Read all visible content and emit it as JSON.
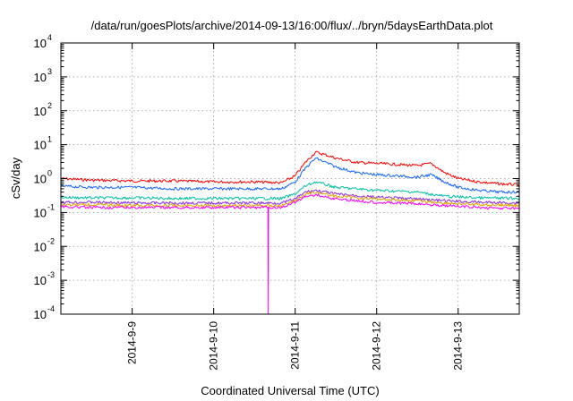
{
  "chart_data": {
    "type": "line",
    "title": "/data/run/goesPlots/archive/2014-09-13/16:00/flux/../bryn/5daysEarthData.plot",
    "xlabel": "Coordinated Universal Time (UTC)",
    "ylabel": "cSv/day",
    "yscale": "log",
    "ylim": [
      0.0001,
      10000
    ],
    "xlim": [
      "2014-09-08 03:00",
      "2014-09-13 18:00"
    ],
    "y_ticks": [
      {
        "base": "10",
        "exp": "-4",
        "value": 0.0001
      },
      {
        "base": "10",
        "exp": "-3",
        "value": 0.001
      },
      {
        "base": "10",
        "exp": "-2",
        "value": 0.01
      },
      {
        "base": "10",
        "exp": "-1",
        "value": 0.1
      },
      {
        "base": "10",
        "exp": "0",
        "value": 1
      },
      {
        "base": "10",
        "exp": "1",
        "value": 10
      },
      {
        "base": "10",
        "exp": "2",
        "value": 100
      },
      {
        "base": "10",
        "exp": "3",
        "value": 1000
      },
      {
        "base": "10",
        "exp": "4",
        "value": 10000
      }
    ],
    "x_ticks": [
      "2014-9-9",
      "2014-9-10",
      "2014-9-11",
      "2014-9-12",
      "2014-9-13"
    ],
    "grid": true,
    "legend": "none",
    "series": [
      {
        "color": "#ff0000",
        "x": [
          "2014-09-08 03:00",
          "2014-09-08 12:00",
          "2014-09-09 00:00",
          "2014-09-09 12:00",
          "2014-09-10 00:00",
          "2014-09-10 12:00",
          "2014-09-10 20:00",
          "2014-09-11 00:00",
          "2014-09-11 03:00",
          "2014-09-11 06:00",
          "2014-09-11 09:00",
          "2014-09-11 12:00",
          "2014-09-11 18:00",
          "2014-09-12 00:00",
          "2014-09-12 06:00",
          "2014-09-12 12:00",
          "2014-09-12 16:00",
          "2014-09-12 20:00",
          "2014-09-13 00:00",
          "2014-09-13 06:00",
          "2014-09-13 12:00",
          "2014-09-13 18:00"
        ],
        "y": [
          1.0,
          0.9,
          0.85,
          0.85,
          0.8,
          0.8,
          0.75,
          1.2,
          3.0,
          6.0,
          5.0,
          4.0,
          3.0,
          2.8,
          2.6,
          2.4,
          2.8,
          1.5,
          1.0,
          0.8,
          0.7,
          0.65
        ]
      },
      {
        "color": "#1565ff",
        "x": [
          "2014-09-08 03:00",
          "2014-09-08 12:00",
          "2014-09-09 00:00",
          "2014-09-09 12:00",
          "2014-09-10 00:00",
          "2014-09-10 12:00",
          "2014-09-10 20:00",
          "2014-09-11 00:00",
          "2014-09-11 03:00",
          "2014-09-11 06:00",
          "2014-09-11 09:00",
          "2014-09-11 12:00",
          "2014-09-11 18:00",
          "2014-09-12 00:00",
          "2014-09-12 06:00",
          "2014-09-12 12:00",
          "2014-09-12 16:00",
          "2014-09-12 20:00",
          "2014-09-13 00:00",
          "2014-09-13 06:00",
          "2014-09-13 12:00",
          "2014-09-13 18:00"
        ],
        "y": [
          0.6,
          0.55,
          0.55,
          0.5,
          0.5,
          0.5,
          0.5,
          0.8,
          2.0,
          4.0,
          3.0,
          2.2,
          1.5,
          1.3,
          1.2,
          1.1,
          1.3,
          0.8,
          0.55,
          0.45,
          0.4,
          0.4
        ]
      },
      {
        "color": "#00c0a0",
        "x": [
          "2014-09-08 03:00",
          "2014-09-08 12:00",
          "2014-09-09 00:00",
          "2014-09-09 12:00",
          "2014-09-10 00:00",
          "2014-09-10 12:00",
          "2014-09-10 20:00",
          "2014-09-11 00:00",
          "2014-09-11 03:00",
          "2014-09-11 06:00",
          "2014-09-11 12:00",
          "2014-09-12 00:00",
          "2014-09-12 12:00",
          "2014-09-12 20:00",
          "2014-09-13 06:00",
          "2014-09-13 18:00"
        ],
        "y": [
          0.28,
          0.27,
          0.27,
          0.26,
          0.26,
          0.26,
          0.26,
          0.35,
          0.6,
          0.8,
          0.55,
          0.45,
          0.4,
          0.3,
          0.27,
          0.26
        ]
      },
      {
        "color": "#8a2be2",
        "x": [
          "2014-09-08 03:00",
          "2014-09-08 12:00",
          "2014-09-09 00:00",
          "2014-09-09 12:00",
          "2014-09-10 00:00",
          "2014-09-10 12:00",
          "2014-09-10 20:00",
          "2014-09-11 00:00",
          "2014-09-11 03:00",
          "2014-09-11 06:00",
          "2014-09-11 12:00",
          "2014-09-12 00:00",
          "2014-09-12 12:00",
          "2014-09-12 20:00",
          "2014-09-13 06:00",
          "2014-09-13 18:00"
        ],
        "y": [
          0.2,
          0.2,
          0.19,
          0.19,
          0.19,
          0.19,
          0.19,
          0.25,
          0.4,
          0.45,
          0.35,
          0.28,
          0.25,
          0.22,
          0.2,
          0.19
        ]
      },
      {
        "color": "#e0a000",
        "x": [
          "2014-09-08 03:00",
          "2014-09-08 12:00",
          "2014-09-09 00:00",
          "2014-09-09 12:00",
          "2014-09-10 00:00",
          "2014-09-10 12:00",
          "2014-09-10 20:00",
          "2014-09-11 00:00",
          "2014-09-11 03:00",
          "2014-09-11 06:00",
          "2014-09-11 12:00",
          "2014-09-12 00:00",
          "2014-09-12 12:00",
          "2014-09-12 20:00",
          "2014-09-13 06:00",
          "2014-09-13 18:00"
        ],
        "y": [
          0.17,
          0.17,
          0.16,
          0.16,
          0.16,
          0.16,
          0.16,
          0.22,
          0.35,
          0.4,
          0.3,
          0.25,
          0.22,
          0.19,
          0.17,
          0.16
        ]
      },
      {
        "color": "#ff00ff",
        "x": [
          "2014-09-08 03:00",
          "2014-09-08 12:00",
          "2014-09-09 00:00",
          "2014-09-09 12:00",
          "2014-09-10 00:00",
          "2014-09-10 12:00",
          "2014-09-10 16:00",
          "2014-09-10 16:05",
          "2014-09-10 16:10",
          "2014-09-10 20:00",
          "2014-09-11 00:00",
          "2014-09-11 03:00",
          "2014-09-11 06:00",
          "2014-09-11 12:00",
          "2014-09-12 00:00",
          "2014-09-12 12:00",
          "2014-09-12 20:00",
          "2014-09-13 06:00",
          "2014-09-13 18:00"
        ],
        "y": [
          0.15,
          0.14,
          0.14,
          0.14,
          0.14,
          0.14,
          0.14,
          0.0001,
          0.14,
          0.14,
          0.2,
          0.3,
          0.33,
          0.25,
          0.2,
          0.18,
          0.16,
          0.14,
          0.13
        ]
      }
    ]
  }
}
